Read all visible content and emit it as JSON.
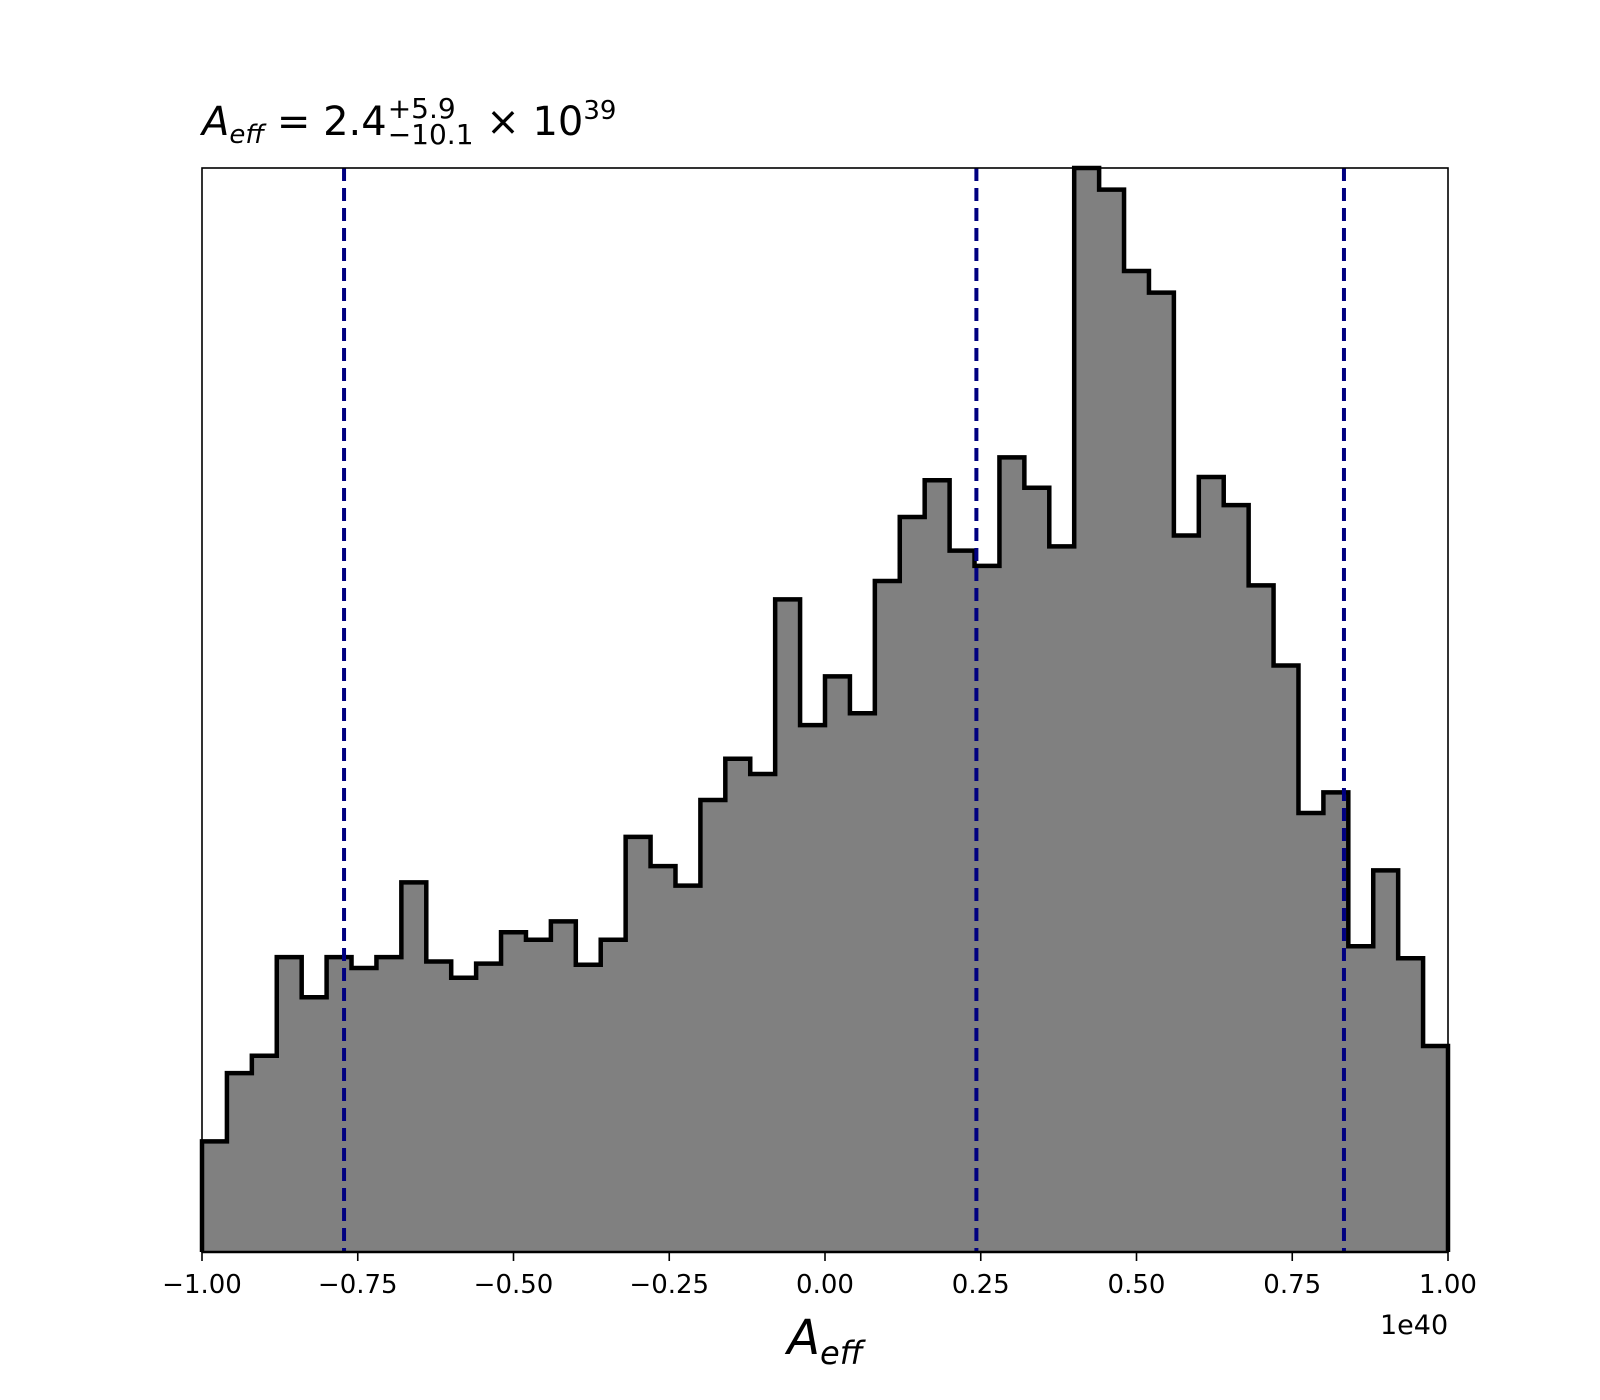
{
  "title": {
    "var_main": "A",
    "var_sub": "eff",
    "equals": "= 2.4",
    "upper": "+5.9",
    "lower": "−10.1",
    "times": "× 10",
    "exponent": "39"
  },
  "xlabel": {
    "main": "A",
    "sub": "eff"
  },
  "x_offset_label": "1e40",
  "colors": {
    "fill": "#808080",
    "edge": "#000000",
    "vline": "#000080"
  },
  "chart_data": {
    "type": "bar",
    "subtype": "histogram-step-filled",
    "xlim": [
      -1.0,
      1.0
    ],
    "ylim": [
      0,
      1.0
    ],
    "x_scale_multiplier": "1e40",
    "x_ticks": [
      -1.0,
      -0.75,
      -0.5,
      -0.25,
      0.0,
      0.25,
      0.5,
      0.75,
      1.0
    ],
    "x_tick_labels": [
      "−1.00",
      "−0.75",
      "−0.50",
      "−0.25",
      "0.00",
      "0.25",
      "0.50",
      "0.75",
      "1.00"
    ],
    "y_axis_visible": false,
    "grid": false,
    "bin_edges": [
      -1.0,
      -0.96,
      -0.92,
      -0.88,
      -0.84,
      -0.8,
      -0.76,
      -0.72,
      -0.68,
      -0.64,
      -0.6,
      -0.56,
      -0.52,
      -0.48,
      -0.44,
      -0.4,
      -0.36,
      -0.32,
      -0.28,
      -0.24,
      -0.2,
      -0.16,
      -0.12,
      -0.08,
      -0.04,
      0.0,
      0.04,
      0.08,
      0.12,
      0.16,
      0.2,
      0.24,
      0.28,
      0.32,
      0.36,
      0.4,
      0.44,
      0.48,
      0.52,
      0.56,
      0.6,
      0.64,
      0.68,
      0.72,
      0.76,
      0.8,
      0.84,
      0.88,
      0.92,
      0.96,
      1.0
    ],
    "values": [
      0.102,
      0.165,
      0.181,
      0.272,
      0.235,
      0.272,
      0.262,
      0.272,
      0.341,
      0.268,
      0.253,
      0.266,
      0.295,
      0.288,
      0.305,
      0.265,
      0.288,
      0.383,
      0.356,
      0.338,
      0.417,
      0.455,
      0.441,
      0.602,
      0.486,
      0.531,
      0.497,
      0.619,
      0.678,
      0.712,
      0.647,
      0.633,
      0.733,
      0.705,
      0.651,
      1.0,
      0.98,
      0.905,
      0.885,
      0.661,
      0.715,
      0.689,
      0.615,
      0.541,
      0.405,
      0.424,
      0.282,
      0.352,
      0.271,
      0.19
    ],
    "vlines": [
      -0.772,
      0.243,
      0.833
    ],
    "vline_style": "dashed"
  }
}
